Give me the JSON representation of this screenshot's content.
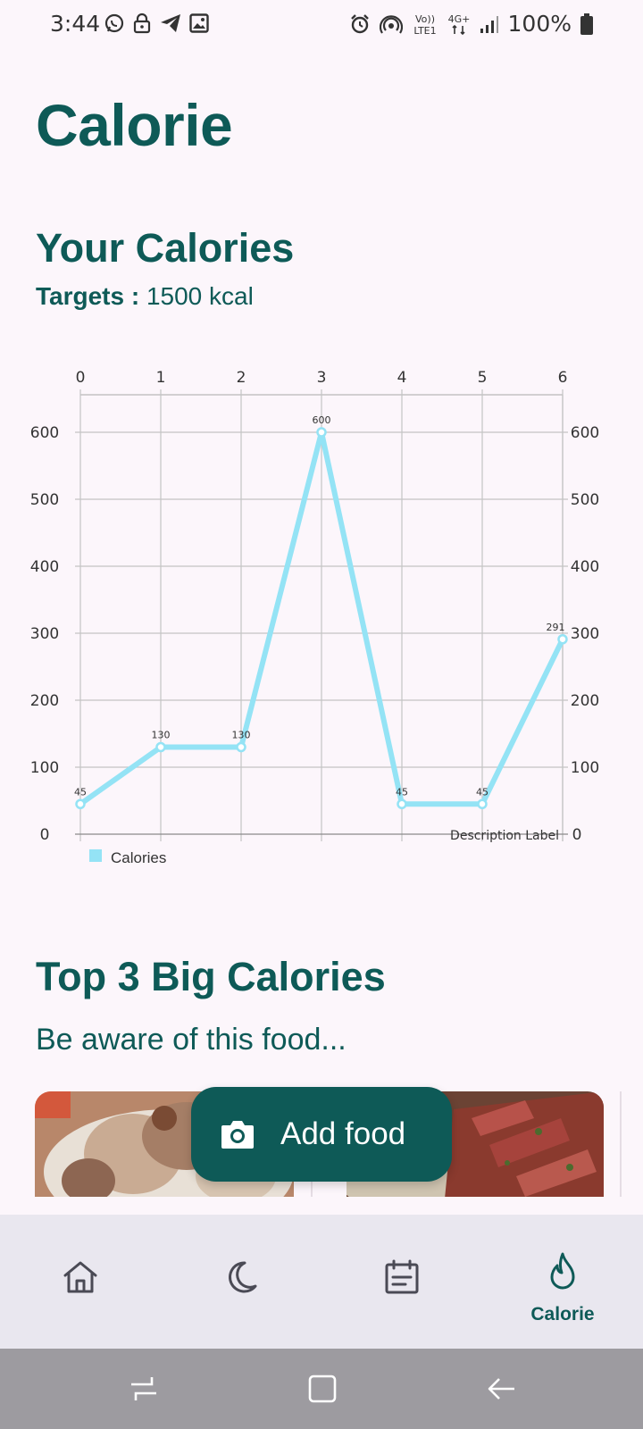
{
  "status_bar": {
    "time": "3:44",
    "battery": "100%",
    "left_icons": [
      "whatsapp-icon",
      "lock-icon",
      "telegram-icon",
      "gallery-icon"
    ],
    "right_icons": [
      "alarm-icon",
      "hotspot-icon",
      "volte-icon",
      "4g-icon",
      "signal-icon",
      "battery-icon"
    ],
    "volte_label": "Vo))",
    "lte_label": "LTE1",
    "net_label": "4G+"
  },
  "page": {
    "title": "Calorie"
  },
  "calories_section": {
    "title": "Your Calories",
    "targets_label": "Targets :",
    "targets_value": "1500 kcal"
  },
  "chart_data": {
    "type": "line",
    "x": [
      0,
      1,
      2,
      3,
      4,
      5,
      6
    ],
    "series": [
      {
        "name": "Calories",
        "values": [
          45,
          130,
          130,
          600,
          45,
          45,
          291
        ],
        "color": "#94e3f5"
      }
    ],
    "ylim": [
      0,
      600
    ],
    "yticks": [
      0,
      100,
      200,
      300,
      400,
      500,
      600
    ],
    "xticks": [
      0,
      1,
      2,
      3,
      4,
      5,
      6
    ],
    "description_label": "Description Label",
    "legend": "bottom-left",
    "grid": true
  },
  "top_section": {
    "title": "Top 3 Big Calories",
    "subtitle": "Be aware of this food..."
  },
  "fab": {
    "label": "Add food",
    "icon": "camera-icon"
  },
  "bottom_nav": {
    "items": [
      {
        "icon": "home-icon",
        "label": ""
      },
      {
        "icon": "moon-icon",
        "label": ""
      },
      {
        "icon": "calendar-icon",
        "label": ""
      },
      {
        "icon": "flame-icon",
        "label": "Calorie"
      }
    ],
    "active_index": 3
  },
  "system_nav": {
    "buttons": [
      "recents-icon",
      "home-square-icon",
      "back-icon"
    ]
  },
  "colors": {
    "primary": "#0e5a57",
    "background": "#fcf6fb",
    "line": "#94e3f5",
    "nav_bg": "#e9e7ef"
  }
}
